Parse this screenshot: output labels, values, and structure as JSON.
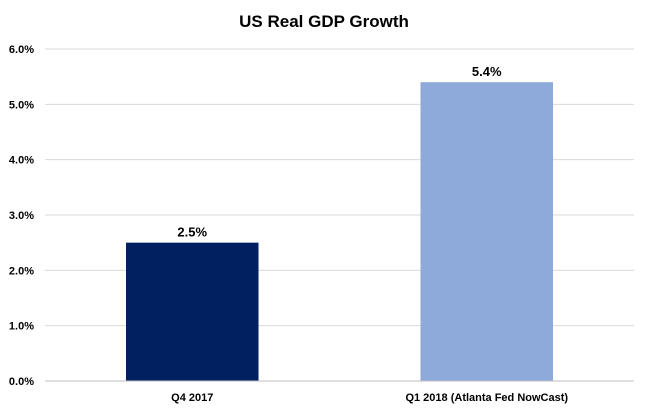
{
  "chart_data": {
    "type": "bar",
    "title": "US Real GDP Growth",
    "categories": [
      "Q4 2017",
      "Q1 2018 (Atlanta Fed NowCast)"
    ],
    "values": [
      2.5,
      5.4
    ],
    "data_labels": [
      "2.5%",
      "5.4%"
    ],
    "bar_colors": [
      "#002060",
      "#8eaadb"
    ],
    "ylim": [
      0,
      6
    ],
    "yticks": [
      0,
      1,
      2,
      3,
      4,
      5,
      6
    ],
    "ytick_labels": [
      "0.0%",
      "1.0%",
      "2.0%",
      "3.0%",
      "4.0%",
      "5.0%",
      "6.0%"
    ],
    "xlabel": "",
    "ylabel": "",
    "grid": true,
    "legend": "none"
  }
}
